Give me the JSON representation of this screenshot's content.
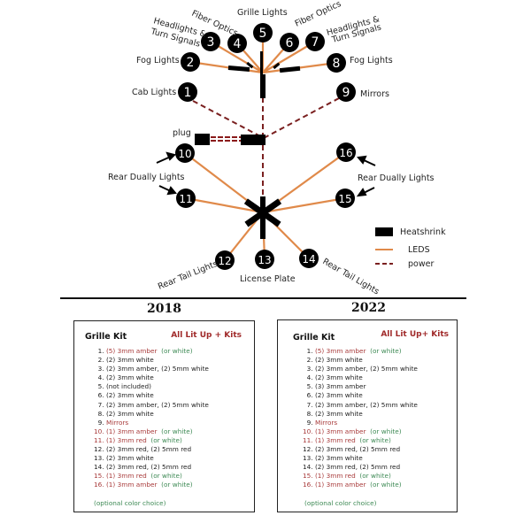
{
  "diagram": {
    "nodes": [
      "1",
      "2",
      "3",
      "4",
      "5",
      "6",
      "7",
      "8",
      "9",
      "10",
      "11",
      "12",
      "13",
      "14",
      "15",
      "16"
    ],
    "labels": {
      "grille": "Grille Lights",
      "fiber_left": "Fiber Optics",
      "fiber_right": "Fiber Optics",
      "headlights_left_1": "Headlights &",
      "headlights_left_2": "Turn Signals",
      "headlights_right_1": "Headlights &",
      "headlights_right_2": "Turn Signals",
      "fog_left": "Fog Lights",
      "fog_right": "Fog Lights",
      "cab": "Cab Lights",
      "mirrors": "Mirrors",
      "plug": "plug",
      "dually_left": "Rear Dually Lights",
      "dually_right": "Rear Dually Lights",
      "tail_left": "Rear Tail Lights",
      "tail_right": "Rear Tail Lights",
      "license": "License Plate"
    },
    "legend": {
      "heatshrink": "Heatshrink",
      "leds": "LEDS",
      "power": "power"
    },
    "colors": {
      "led": "#e08a4a",
      "power": "#7a2020",
      "node": "#000000"
    }
  },
  "kits": [
    {
      "year": "2018",
      "title": "Grille Kit",
      "brand": "All Lit Up + Kits",
      "note": "(optional color choice)",
      "items": [
        {
          "num": "1.",
          "text": "(5) 3mm amber",
          "alt": "(or white)",
          "red": true,
          "num_red": false
        },
        {
          "num": "2.",
          "text": "(2) 3mm white",
          "alt": "",
          "red": false,
          "num_red": false
        },
        {
          "num": "3.",
          "text": "(2) 3mm amber, (2) 5mm white",
          "alt": "",
          "red": false,
          "num_red": false
        },
        {
          "num": "4.",
          "text": "(2) 3mm white",
          "alt": "",
          "red": false,
          "num_red": false
        },
        {
          "num": "5.",
          "text": "(not included)",
          "alt": "",
          "red": false,
          "num_red": false
        },
        {
          "num": "6.",
          "text": "(2) 3mm white",
          "alt": "",
          "red": false,
          "num_red": false
        },
        {
          "num": "7.",
          "text": "(2) 3mm amber, (2) 5mm white",
          "alt": "",
          "red": false,
          "num_red": false
        },
        {
          "num": "8.",
          "text": "(2) 3mm white",
          "alt": "",
          "red": false,
          "num_red": false
        },
        {
          "num": "9.",
          "text": "Mirrors",
          "alt": "",
          "red": true,
          "num_red": false
        },
        {
          "num": "10.",
          "text": "(1) 3mm amber",
          "alt": "(or white)",
          "red": true,
          "num_red": true
        },
        {
          "num": "11.",
          "text": "(1) 3mm red",
          "alt": "(or white)",
          "red": true,
          "num_red": true
        },
        {
          "num": "12.",
          "text": "(2) 3mm red, (2) 5mm red",
          "alt": "",
          "red": false,
          "num_red": false
        },
        {
          "num": "13.",
          "text": "(2) 3mm white",
          "alt": "",
          "red": false,
          "num_red": false
        },
        {
          "num": "14.",
          "text": "(2) 3mm red, (2) 5mm red",
          "alt": "",
          "red": false,
          "num_red": false
        },
        {
          "num": "15.",
          "text": "(1) 3mm red",
          "alt": "(or white)",
          "red": true,
          "num_red": true
        },
        {
          "num": "16.",
          "text": "(1) 3mm amber",
          "alt": "(or white)",
          "red": true,
          "num_red": true
        }
      ]
    },
    {
      "year": "2022",
      "title": "Grille Kit",
      "brand": "All Lit Up+ Kits",
      "note": "(optional color choice)",
      "items": [
        {
          "num": "1.",
          "text": "(5) 3mm amber",
          "alt": "(or white)",
          "red": true,
          "num_red": false
        },
        {
          "num": "2.",
          "text": "(2) 3mm white",
          "alt": "",
          "red": false,
          "num_red": false
        },
        {
          "num": "3.",
          "text": "(2) 3mm amber, (2) 5mm white",
          "alt": "",
          "red": false,
          "num_red": false
        },
        {
          "num": "4.",
          "text": "(2) 3mm white",
          "alt": "",
          "red": false,
          "num_red": false
        },
        {
          "num": "5.",
          "text": "(3) 3mm amber",
          "alt": "",
          "red": false,
          "num_red": false
        },
        {
          "num": "6.",
          "text": "(2) 3mm white",
          "alt": "",
          "red": false,
          "num_red": false
        },
        {
          "num": "7.",
          "text": "(2) 3mm amber, (2) 5mm white",
          "alt": "",
          "red": false,
          "num_red": false
        },
        {
          "num": "8.",
          "text": "(2) 3mm white",
          "alt": "",
          "red": false,
          "num_red": false
        },
        {
          "num": "9.",
          "text": "Mirrors",
          "alt": "",
          "red": true,
          "num_red": false
        },
        {
          "num": "10.",
          "text": "(1) 3mm amber",
          "alt": "(or white)",
          "red": true,
          "num_red": true
        },
        {
          "num": "11.",
          "text": "(1) 3mm red",
          "alt": "(or white)",
          "red": true,
          "num_red": true
        },
        {
          "num": "12.",
          "text": "(2) 3mm red, (2) 5mm red",
          "alt": "",
          "red": false,
          "num_red": false
        },
        {
          "num": "13.",
          "text": "(2) 3mm white",
          "alt": "",
          "red": false,
          "num_red": false
        },
        {
          "num": "14.",
          "text": "(2) 3mm red, (2) 5mm red",
          "alt": "",
          "red": false,
          "num_red": false
        },
        {
          "num": "15.",
          "text": "(1) 3mm red",
          "alt": "(or white)",
          "red": true,
          "num_red": true
        },
        {
          "num": "16.",
          "text": "(1) 3mm amber",
          "alt": "(or white)",
          "red": true,
          "num_red": true
        }
      ]
    }
  ]
}
